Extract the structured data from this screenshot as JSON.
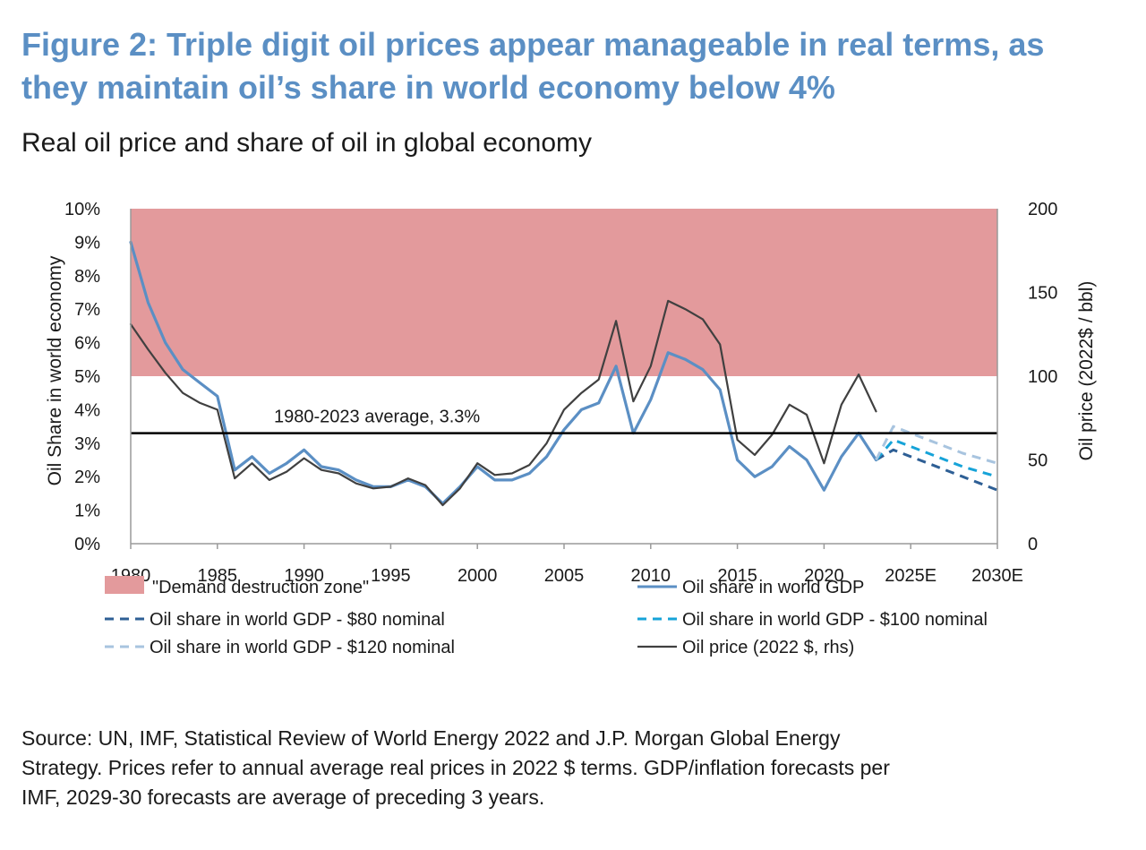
{
  "figure": {
    "title_line1": "Figure 2: Triple digit oil prices appear manageable in real terms, as",
    "title_line2": "they maintain oil’s share in world economy below 4%",
    "subtitle": "Real oil price and share of oil in global economy",
    "source_line1": "Source: UN, IMF, Statistical Review of World Energy 2022 and J.P. Morgan Global Energy",
    "source_line2": "Strategy. Prices refer to annual average real prices in 2022 $ terms. GDP/inflation forecasts per",
    "source_line3": "IMF, 2029-30 forecasts are average of preceding 3 years."
  },
  "colors": {
    "zone": "#e39a9c",
    "share": "#5b8fc4",
    "share80": "#2e5f95",
    "share100": "#16a3d8",
    "share120": "#a8c4df",
    "oil": "#404040",
    "average": "#000000",
    "axis": "#9a9a9a",
    "text": "#1a1a1a"
  },
  "chart_data": {
    "type": "line",
    "title": "Real oil price and share of oil in global economy",
    "ylabel": "Oil Share in world economy",
    "ylabel_right": "Oil price (2022$ / bbl)",
    "ylim": [
      0,
      10
    ],
    "ylim_right": [
      0,
      200
    ],
    "yticks": [
      "0%",
      "1%",
      "2%",
      "3%",
      "4%",
      "5%",
      "6%",
      "7%",
      "8%",
      "9%",
      "10%"
    ],
    "yticks_right": [
      "0",
      "50",
      "100",
      "150",
      "200"
    ],
    "xlim": [
      1980,
      2030
    ],
    "xticks": [
      {
        "x": 1980,
        "label": "1980"
      },
      {
        "x": 1985,
        "label": "1985"
      },
      {
        "x": 1990,
        "label": "1990"
      },
      {
        "x": 1995,
        "label": "1995"
      },
      {
        "x": 2000,
        "label": "2000"
      },
      {
        "x": 2005,
        "label": "2005"
      },
      {
        "x": 2010,
        "label": "2010"
      },
      {
        "x": 2015,
        "label": "2015"
      },
      {
        "x": 2020,
        "label": "2020"
      },
      {
        "x": 2025,
        "label": "2025E"
      },
      {
        "x": 2030,
        "label": "2030E"
      }
    ],
    "zone": {
      "name": "\"Demand destruction zone\"",
      "from": 5,
      "to": 10
    },
    "average": {
      "value": 3.3,
      "label": "1980-2023 average, 3.3%"
    },
    "series": [
      {
        "key": "share",
        "name": "Oil share in world GDP",
        "axis": "left",
        "style": "solid",
        "x": [
          1980,
          1981,
          1982,
          1983,
          1984,
          1985,
          1986,
          1987,
          1988,
          1989,
          1990,
          1991,
          1992,
          1993,
          1994,
          1995,
          1996,
          1997,
          1998,
          1999,
          2000,
          2001,
          2002,
          2003,
          2004,
          2005,
          2006,
          2007,
          2008,
          2009,
          2010,
          2011,
          2012,
          2013,
          2014,
          2015,
          2016,
          2017,
          2018,
          2019,
          2020,
          2021,
          2022,
          2023
        ],
        "y": [
          9.0,
          7.2,
          6.0,
          5.2,
          4.8,
          4.4,
          2.2,
          2.6,
          2.1,
          2.4,
          2.8,
          2.3,
          2.2,
          1.9,
          1.7,
          1.7,
          1.9,
          1.7,
          1.2,
          1.7,
          2.3,
          1.9,
          1.9,
          2.1,
          2.6,
          3.4,
          4.0,
          4.2,
          5.3,
          3.3,
          4.3,
          5.7,
          5.5,
          5.2,
          4.6,
          2.5,
          2.0,
          2.3,
          2.9,
          2.5,
          1.6,
          2.6,
          3.3,
          2.5
        ]
      },
      {
        "key": "share80",
        "name": "Oil share in world GDP - $80 nominal",
        "axis": "left",
        "style": "dashed",
        "x": [
          2023,
          2024,
          2025,
          2026,
          2027,
          2028,
          2029,
          2030
        ],
        "y": [
          2.5,
          2.8,
          2.6,
          2.4,
          2.2,
          2.0,
          1.8,
          1.6
        ]
      },
      {
        "key": "share100",
        "name": "Oil share in world GDP - $100 nominal",
        "axis": "left",
        "style": "dashed",
        "x": [
          2023,
          2024,
          2025,
          2026,
          2027,
          2028,
          2029,
          2030
        ],
        "y": [
          2.5,
          3.1,
          2.9,
          2.7,
          2.5,
          2.3,
          2.15,
          2.0
        ]
      },
      {
        "key": "share120",
        "name": "Oil share in world GDP - $120 nominal",
        "axis": "left",
        "style": "dashed",
        "x": [
          2023,
          2024,
          2025,
          2026,
          2027,
          2028,
          2029,
          2030
        ],
        "y": [
          2.5,
          3.5,
          3.3,
          3.1,
          2.9,
          2.7,
          2.55,
          2.4
        ]
      },
      {
        "key": "oil",
        "name": "Oil price (2022 $, rhs)",
        "axis": "right",
        "style": "solid",
        "x": [
          1980,
          1981,
          1982,
          1983,
          1984,
          1985,
          1986,
          1987,
          1988,
          1989,
          1990,
          1991,
          1992,
          1993,
          1994,
          1995,
          1996,
          1997,
          1998,
          1999,
          2000,
          2001,
          2002,
          2003,
          2004,
          2005,
          2006,
          2007,
          2008,
          2009,
          2010,
          2011,
          2012,
          2013,
          2014,
          2015,
          2016,
          2017,
          2018,
          2019,
          2020,
          2021,
          2022,
          2023
        ],
        "y": [
          131,
          116,
          102,
          90,
          84,
          80,
          39,
          48,
          38,
          43,
          51,
          44,
          42,
          36,
          33,
          34,
          39,
          35,
          23,
          33,
          48,
          41,
          42,
          47,
          60,
          80,
          90,
          98,
          133,
          85,
          106,
          145,
          140,
          134,
          119,
          62,
          53,
          65,
          83,
          77,
          48,
          83,
          101,
          79
        ]
      }
    ]
  }
}
